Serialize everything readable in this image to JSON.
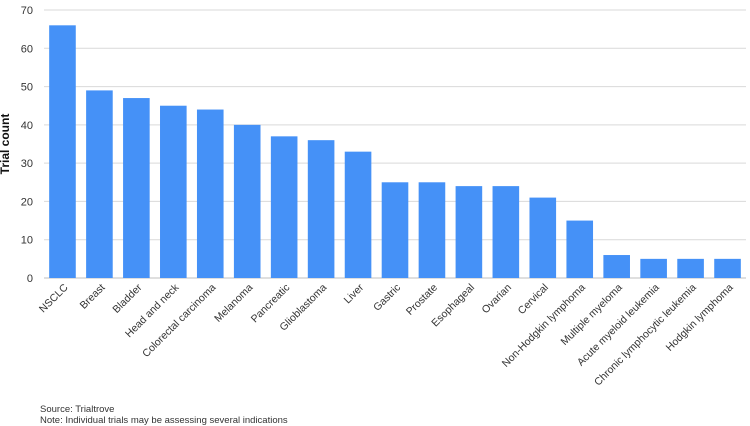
{
  "chart_data": {
    "type": "bar",
    "title": "",
    "xlabel": "",
    "ylabel": "Trial count",
    "ylim": [
      0,
      70
    ],
    "yticks": [
      0,
      10,
      20,
      30,
      40,
      50,
      60,
      70
    ],
    "grid": true,
    "bar_color": "#4591f7",
    "categories": [
      "NSCLC",
      "Breast",
      "Bladder",
      "Head and neck",
      "Colorectal carcinoma",
      "Melanoma",
      "Pancreatic",
      "Glioblastoma",
      "Liver",
      "Gastric",
      "Prostate",
      "Esophageal",
      "Ovarian",
      "Cervical",
      "Non-Hodgkin lymphoma",
      "Multiple myeloma",
      "Acute myeloid leukemia",
      "Chronic lymphocytic leukemia",
      "Hodgkin lymphoma"
    ],
    "values": [
      66,
      49,
      47,
      45,
      44,
      40,
      37,
      36,
      33,
      25,
      25,
      24,
      24,
      21,
      15,
      6,
      5,
      5,
      5
    ]
  },
  "notes": {
    "source": "Source: Trialtrove",
    "note": "Note: Individual trials may be assessing several indications"
  }
}
